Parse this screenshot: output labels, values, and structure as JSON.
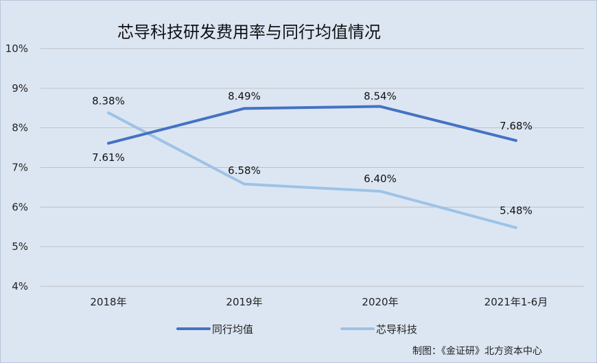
{
  "chart_data": {
    "type": "line",
    "title": "芯导科技研发费用率与同行均值情况",
    "categories": [
      "2018年",
      "2019年",
      "2020年",
      "2021年1-6月"
    ],
    "y_ticks": [
      "10%",
      "9%",
      "8%",
      "7%",
      "6%",
      "5%",
      "4%"
    ],
    "ylim": [
      4,
      10
    ],
    "series": [
      {
        "name": "同行均值",
        "color": "#4472c4",
        "values": [
          7.61,
          8.49,
          8.54,
          7.68
        ],
        "labels": [
          "7.61%",
          "8.49%",
          "8.54%",
          "7.68%"
        ]
      },
      {
        "name": "芯导科技",
        "color": "#9dc3e6",
        "values": [
          8.38,
          6.58,
          6.4,
          5.48
        ],
        "labels": [
          "8.38%",
          "6.58%",
          "6.40%",
          "5.48%"
        ]
      }
    ],
    "legend_position": "bottom",
    "source": "制图：《金证研》北方资本中心"
  }
}
